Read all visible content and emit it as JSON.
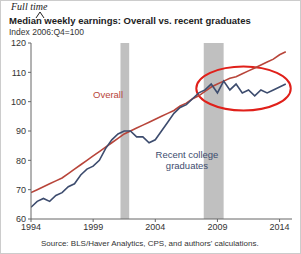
{
  "chart_data": {
    "type": "line",
    "title": "Median weekly earnings: Overall vs. recent graduates",
    "subtitle": "Index 2006:Q4=100",
    "annotations": [
      "Full time"
    ],
    "source": "Source: BLS/Haver Analytics, CPS, and authors' calculations.",
    "x": [
      1994,
      1994.5,
      1995,
      1995.5,
      1996,
      1996.5,
      1997,
      1997.5,
      1998,
      1998.5,
      1999,
      1999.5,
      2000,
      2000.5,
      2001,
      2001.5,
      2002,
      2002.5,
      2003,
      2003.5,
      2004,
      2004.5,
      2005,
      2005.5,
      2006,
      2006.5,
      2007,
      2007.5,
      2008,
      2008.5,
      2009,
      2009.5,
      2010,
      2010.5,
      2011,
      2011.5,
      2012,
      2012.5,
      2013,
      2013.5,
      2014,
      2014.5
    ],
    "series": [
      {
        "name": "Overall",
        "color": "#b8453a",
        "values": [
          69,
          70,
          71,
          72,
          73,
          74,
          75.5,
          77,
          78.5,
          80,
          81.5,
          83,
          84.5,
          86,
          87.5,
          89,
          90,
          91,
          92,
          93,
          94,
          95,
          96,
          97,
          98.5,
          99.5,
          101,
          102,
          103.5,
          105,
          106,
          107,
          108,
          108.5,
          109.5,
          110.5,
          111.5,
          112.5,
          113.5,
          114.5,
          116,
          117
        ]
      },
      {
        "name": "Recent college graduates",
        "color": "#3d4c6e",
        "values": [
          64,
          66,
          67,
          66,
          68,
          69,
          71,
          72,
          75,
          77,
          78,
          80,
          84,
          87,
          89,
          90,
          90,
          88,
          88,
          86,
          87,
          90,
          93,
          96,
          98,
          99,
          101,
          103,
          104,
          106,
          103,
          107,
          104,
          106,
          103,
          104,
          102,
          104,
          103,
          104,
          105,
          106
        ]
      }
    ],
    "xlim": [
      1994,
      2015
    ],
    "xticks": [
      1994,
      1999,
      2004,
      2009,
      2014
    ],
    "ylim": [
      60,
      120
    ],
    "yticks": [
      60,
      70,
      80,
      90,
      100,
      110,
      120
    ],
    "recessions": [
      [
        2001.2,
        2001.9
      ],
      [
        2007.9,
        2009.5
      ]
    ],
    "highlight": {
      "x": [
        2007.3,
        2014.9
      ],
      "y": [
        97,
        112
      ],
      "color": "#e0201a"
    },
    "grid": false
  }
}
